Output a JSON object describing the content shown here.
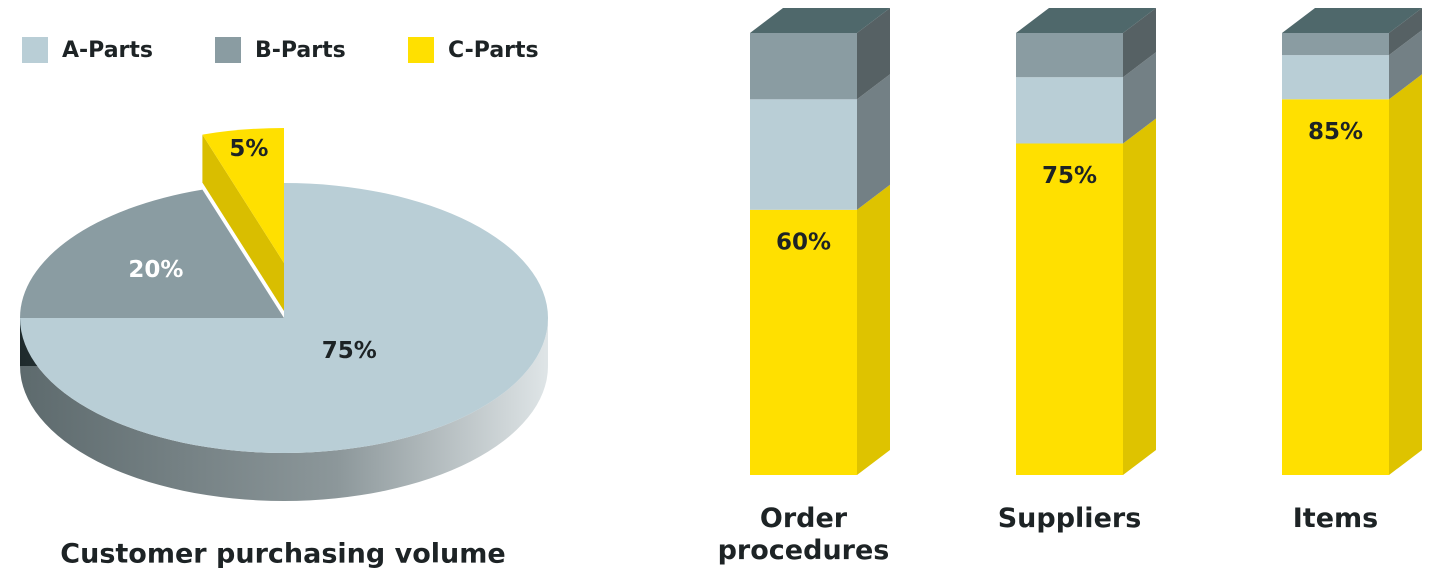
{
  "chart_data": [
    {
      "type": "pie",
      "title": "Customer purchasing volume",
      "categories": [
        "A-Parts",
        "B-Parts",
        "C-Parts"
      ],
      "values": [
        75,
        20,
        5
      ],
      "value_labels": [
        "75%",
        "20%",
        "5%"
      ],
      "colors": [
        "#b9ced6",
        "#8a9ca2",
        "#ffe000"
      ],
      "exploded": [
        false,
        false,
        true
      ]
    },
    {
      "type": "bar",
      "stacked": true,
      "categories": [
        "Order procedures",
        "Suppliers",
        "Items"
      ],
      "series": [
        {
          "color": "#ffe000",
          "values": [
            60,
            75,
            85
          ],
          "value_labels": [
            "60%",
            "75%",
            "85%"
          ]
        },
        {
          "color": "#b9ced6",
          "values": [
            25,
            15,
            10
          ]
        },
        {
          "color": "#8a9ca2",
          "values": [
            15,
            10,
            5
          ]
        }
      ]
    }
  ]
}
